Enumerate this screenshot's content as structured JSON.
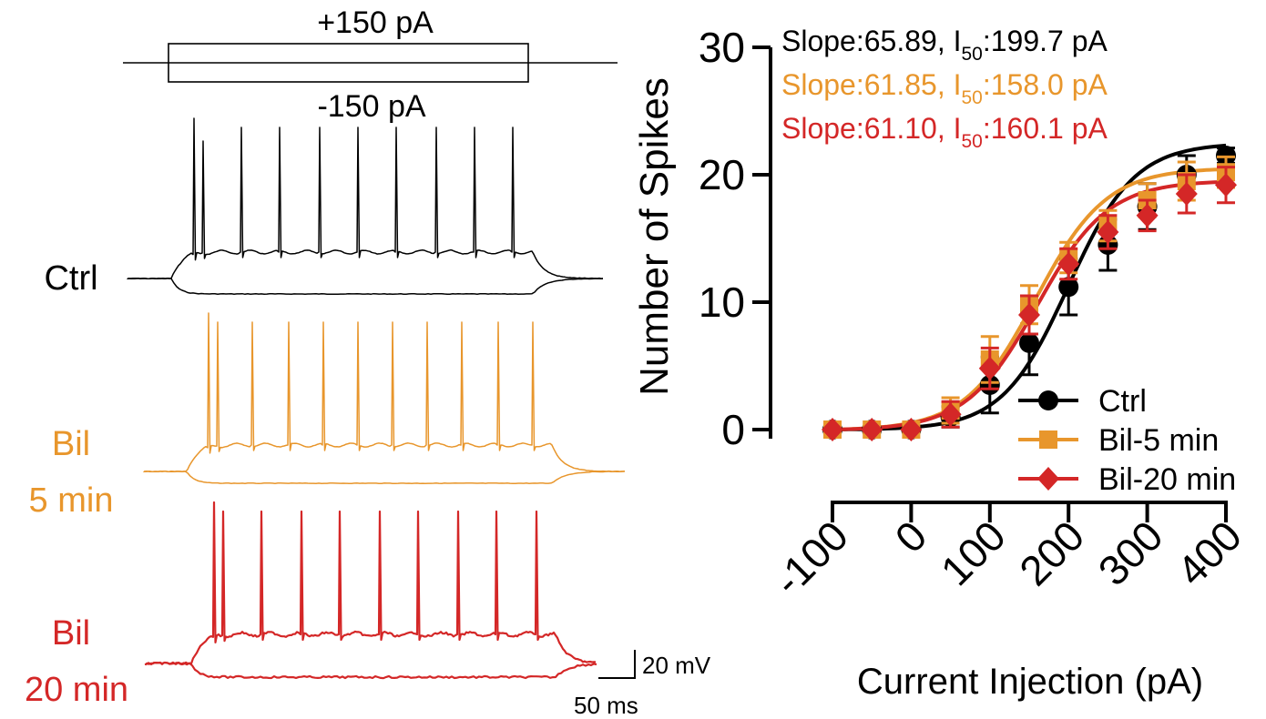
{
  "colors": {
    "ctrl": "#000000",
    "bil5": "#E8962C",
    "bil20": "#D42727"
  },
  "left_panel": {
    "stimulus_plus_label": "+150 pA",
    "stimulus_minus_label": "-150 pA",
    "traces": [
      {
        "key": "ctrl",
        "label_lines": [
          "Ctrl"
        ],
        "spikes": 10
      },
      {
        "key": "bil5",
        "label_lines": [
          "Bil",
          "5 min"
        ],
        "spikes": 11
      },
      {
        "key": "bil20",
        "label_lines": [
          "Bil",
          "20 min"
        ],
        "spikes": 10
      }
    ],
    "scale_bar": {
      "voltage_label": "20 mV",
      "time_label": "50 ms"
    }
  },
  "chart_data": {
    "type": "line",
    "xlabel": "Current Injection (pA)",
    "ylabel": "Number of Spikes",
    "x_ticks": [
      -100,
      0,
      100,
      200,
      300,
      400
    ],
    "x_tick_labels": [
      "-100",
      "0",
      "100",
      "200",
      "300",
      "400"
    ],
    "xlim": [
      -100,
      400
    ],
    "y_ticks": [
      0,
      10,
      20,
      30
    ],
    "y_tick_labels": [
      "0",
      "10",
      "20",
      "30"
    ],
    "ylim": [
      0,
      30
    ],
    "x": [
      -100,
      -50,
      0,
      50,
      100,
      150,
      200,
      250,
      300,
      350,
      400
    ],
    "series": [
      {
        "name": "Ctrl",
        "color_key": "ctrl",
        "marker": "circle",
        "values": [
          0,
          0,
          0,
          1,
          3.5,
          6.8,
          11.2,
          14.5,
          17.5,
          20,
          21.5
        ],
        "errors": [
          0,
          0,
          0,
          0.8,
          2.2,
          2.5,
          2.2,
          2.0,
          1.8,
          1.5,
          0.6
        ],
        "slope": 65.89,
        "i50": 199.7
      },
      {
        "name": "Bil-5 min",
        "color_key": "bil5",
        "marker": "square",
        "values": [
          0,
          0,
          0,
          1.5,
          5.5,
          9.8,
          13.5,
          16.0,
          18.0,
          19.5,
          20.2
        ],
        "errors": [
          0,
          0,
          0,
          1.0,
          1.8,
          1.5,
          1.2,
          1.2,
          1.3,
          1.5,
          1.2
        ],
        "slope": 61.85,
        "i50": 158.0
      },
      {
        "name": "Bil-20 min",
        "color_key": "bil20",
        "marker": "diamond",
        "values": [
          0,
          0,
          0,
          1.2,
          4.8,
          9.0,
          13.0,
          15.5,
          16.8,
          18.5,
          19.2
        ],
        "errors": [
          0,
          0,
          0,
          1.0,
          1.6,
          1.5,
          1.2,
          1.3,
          1.2,
          1.5,
          1.4
        ],
        "slope": 61.1,
        "i50": 160.1
      }
    ],
    "annotations": [
      {
        "color_key": "ctrl",
        "pre": "Slope:65.89, I",
        "sub": "50",
        "post": ":199.7 pA"
      },
      {
        "color_key": "bil5",
        "pre": "Slope:61.85, I",
        "sub": "50",
        "post": ":158.0 pA"
      },
      {
        "color_key": "bil20",
        "pre": "Slope:61.10, I",
        "sub": "50",
        "post": ":160.1 pA"
      }
    ],
    "legend": [
      "Ctrl",
      "Bil-5 min",
      "Bil-20 min"
    ],
    "legend_position": "bottom-right",
    "grid": false
  }
}
